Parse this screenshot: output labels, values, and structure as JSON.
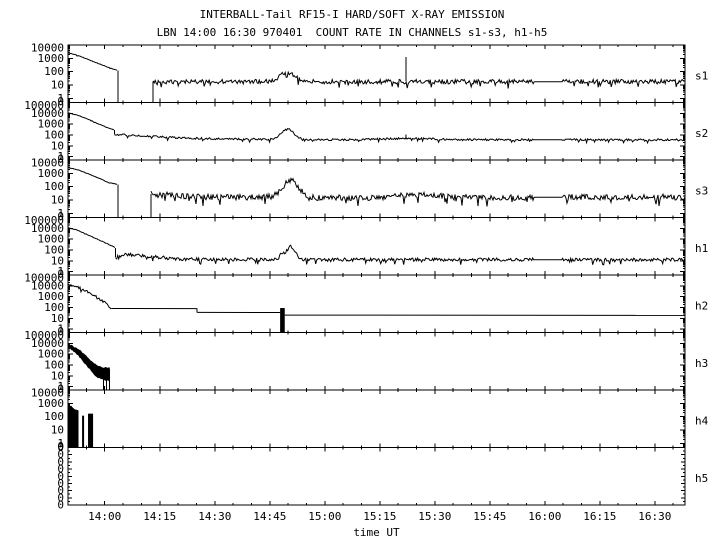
{
  "page": {
    "background": "#ffffff",
    "foreground": "#000000"
  },
  "header": {
    "title": "INTERBALL-Tail RF15-I HARD/SOFT X-RAY EMISSION",
    "subtitle": "LBN 14:00 16:30 970401  COUNT RATE IN CHANNELS s1-s3, h1-h5"
  },
  "chart_data": {
    "type": "line",
    "title": "INTERBALL-Tail RF15-I HARD/SOFT X-RAY EMISSION",
    "subtitle": "LBN 14:00 16:30 970401  COUNT RATE IN CHANNELS s1-s3, h1-h5",
    "xlabel": "time UT",
    "x_unit": "hours UT",
    "x_range": [
      13.833,
      16.637
    ],
    "grid": false,
    "legend": "channel labels on right side",
    "x_major_ticks": [
      {
        "t": 14.0,
        "label": "14:00"
      },
      {
        "t": 14.25,
        "label": "14:15"
      },
      {
        "t": 14.5,
        "label": "14:30"
      },
      {
        "t": 14.75,
        "label": "14:45"
      },
      {
        "t": 15.0,
        "label": "15:00"
      },
      {
        "t": 15.25,
        "label": "15:15"
      },
      {
        "t": 15.5,
        "label": "15:30"
      },
      {
        "t": 15.75,
        "label": "15:45"
      },
      {
        "t": 16.0,
        "label": "16:00"
      },
      {
        "t": 16.25,
        "label": "16:15"
      },
      {
        "t": 16.5,
        "label": "16:30"
      }
    ],
    "x_minor_step_hours": 0.0833333,
    "panels": [
      {
        "label": "s1",
        "scale": "log",
        "ylim": [
          0.5,
          10000
        ],
        "yticks": [
          {
            "v": 10000,
            "label": "10000"
          },
          {
            "v": 1000,
            "label": "1000"
          },
          {
            "v": 100,
            "label": "100"
          },
          {
            "v": 10,
            "label": "10"
          },
          {
            "v": 1,
            "label": "1"
          }
        ],
        "bottom_label": "0",
        "segments": [
          {
            "op": "line",
            "base": [
              [
                13.833,
                2600
              ],
              [
                13.875,
                1700
              ],
              [
                13.92,
                900
              ],
              [
                13.97,
                420
              ],
              [
                14.02,
                200
              ],
              [
                14.06,
                120
              ]
            ],
            "amp": 0.02
          },
          {
            "op": "vline",
            "t": 14.06,
            "v0": 120,
            "v1": 0.5
          },
          {
            "op": "vline",
            "t": 14.22,
            "v0": 0.5,
            "v1": 18
          },
          {
            "op": "line",
            "base": [
              [
                14.22,
                18
              ],
              [
                16.637,
                18
              ]
            ],
            "amp": 0.17,
            "bumps": [
              {
                "t": 14.83,
                "w": 0.045,
                "peak": 95
              }
            ],
            "spikes": [
              [
                15.37,
                1300
              ]
            ],
            "quiet": [
              [
                15.947,
                16.08
              ]
            ]
          }
        ]
      },
      {
        "label": "s2",
        "scale": "log",
        "ylim": [
          0.5,
          100000
        ],
        "yticks": [
          {
            "v": 100000,
            "label": "100000"
          },
          {
            "v": 10000,
            "label": "10000"
          },
          {
            "v": 1000,
            "label": "1000"
          },
          {
            "v": 100,
            "label": "100"
          },
          {
            "v": 10,
            "label": "10"
          },
          {
            "v": 1,
            "label": "1"
          }
        ],
        "bottom_label": "0",
        "segments": [
          {
            "op": "line",
            "base": [
              [
                13.833,
                11000
              ],
              [
                13.875,
                7000
              ],
              [
                13.92,
                3200
              ],
              [
                13.97,
                1100
              ],
              [
                14.02,
                420
              ],
              [
                14.045,
                300
              ]
            ],
            "amp": 0.02
          },
          {
            "op": "vline",
            "t": 14.045,
            "v0": 300,
            "v1": 110
          },
          {
            "op": "line",
            "base": [
              [
                14.045,
                110
              ],
              [
                14.15,
                95
              ],
              [
                14.3,
                60
              ],
              [
                14.5,
                45
              ],
              [
                14.9,
                38
              ],
              [
                16.637,
                36
              ]
            ],
            "amp": 0.09,
            "bumps": [
              {
                "t": 14.83,
                "w": 0.04,
                "peak": 380
              },
              {
                "t": 15.38,
                "w": 0.15,
                "peak": 48
              }
            ],
            "spikes": [
              [
                15.37,
                110
              ]
            ],
            "quiet": [
              [
                15.947,
                16.08
              ]
            ]
          }
        ]
      },
      {
        "label": "s3",
        "scale": "log",
        "ylim": [
          0.5,
          10000
        ],
        "yticks": [
          {
            "v": 10000,
            "label": "10000"
          },
          {
            "v": 1000,
            "label": "1000"
          },
          {
            "v": 100,
            "label": "100"
          },
          {
            "v": 10,
            "label": "10"
          },
          {
            "v": 1,
            "label": "1"
          }
        ],
        "bottom_label": "0",
        "segments": [
          {
            "op": "line",
            "base": [
              [
                13.833,
                2700
              ],
              [
                13.875,
                1900
              ],
              [
                13.92,
                1000
              ],
              [
                13.97,
                450
              ],
              [
                14.02,
                200
              ],
              [
                14.06,
                150
              ]
            ],
            "amp": 0.02
          },
          {
            "op": "vline",
            "t": 14.06,
            "v0": 150,
            "v1": 0.5
          },
          {
            "op": "vline",
            "t": 14.21,
            "v0": 0.5,
            "v1": 28
          },
          {
            "op": "line",
            "base": [
              [
                14.21,
                28
              ],
              [
                14.45,
                17
              ],
              [
                15.1,
                15
              ],
              [
                16.637,
                17
              ]
            ],
            "amp": 0.22,
            "bumps": [
              {
                "t": 14.845,
                "w": 0.05,
                "peak": 300
              },
              {
                "t": 15.42,
                "w": 0.12,
                "peak": 26
              }
            ],
            "quiet": [
              [
                15.947,
                16.08
              ]
            ]
          }
        ]
      },
      {
        "label": "h1",
        "scale": "log",
        "ylim": [
          0.5,
          100000
        ],
        "yticks": [
          {
            "v": 100000,
            "label": "100000"
          },
          {
            "v": 10000,
            "label": "10000"
          },
          {
            "v": 1000,
            "label": "1000"
          },
          {
            "v": 100,
            "label": "100"
          },
          {
            "v": 10,
            "label": "10"
          },
          {
            "v": 1,
            "label": "1"
          }
        ],
        "bottom_label": "0",
        "segments": [
          {
            "op": "line",
            "base": [
              [
                13.833,
                11000
              ],
              [
                13.87,
                7500
              ],
              [
                13.92,
                2800
              ],
              [
                13.97,
                900
              ],
              [
                14.02,
                320
              ],
              [
                14.05,
                160
              ]
            ],
            "amp": 0.03
          },
          {
            "op": "vline",
            "t": 14.05,
            "v0": 160,
            "v1": 20
          },
          {
            "op": "line",
            "base": [
              [
                14.05,
                20
              ],
              [
                14.1,
                40
              ],
              [
                14.16,
                30
              ],
              [
                14.35,
                14
              ],
              [
                15.0,
                13
              ],
              [
                16.637,
                13
              ]
            ],
            "amp": 0.15,
            "bumps": [
              {
                "t": 14.805,
                "w": 0.012,
                "peak": 50
              },
              {
                "t": 14.845,
                "w": 0.028,
                "peak": 200
              }
            ],
            "quiet": [
              [
                15.947,
                16.08
              ]
            ]
          }
        ]
      },
      {
        "label": "h2",
        "scale": "log",
        "ylim": [
          0.5,
          100000
        ],
        "yticks": [
          {
            "v": 100000,
            "label": "100000"
          },
          {
            "v": 10000,
            "label": "10000"
          },
          {
            "v": 1000,
            "label": "1000"
          },
          {
            "v": 100,
            "label": "100"
          },
          {
            "v": 10,
            "label": "10"
          },
          {
            "v": 1,
            "label": "1"
          }
        ],
        "bottom_label": "0",
        "segments": [
          {
            "op": "line",
            "base": [
              [
                13.833,
                16000
              ],
              [
                13.87,
                9000
              ],
              [
                13.92,
                3000
              ],
              [
                13.97,
                800
              ],
              [
                14.01,
                200
              ],
              [
                14.03,
                85
              ]
            ],
            "amp": 0.1
          },
          {
            "op": "line",
            "base": [
              [
                14.03,
                82
              ],
              [
                14.42,
                80
              ]
            ],
            "amp": 0
          },
          {
            "op": "vline",
            "t": 14.42,
            "v0": 80,
            "v1": 36
          },
          {
            "op": "line",
            "base": [
              [
                14.42,
                36
              ],
              [
                14.797,
                35
              ]
            ],
            "amp": 0
          },
          {
            "op": "bar",
            "t0": 14.797,
            "t1": 14.818,
            "v0": 0.5,
            "v1": 90
          },
          {
            "op": "line",
            "base": [
              [
                14.818,
                20
              ],
              [
                16.637,
                19
              ]
            ],
            "amp": 0
          }
        ]
      },
      {
        "label": "h3",
        "scale": "log",
        "ylim": [
          0.5,
          100000
        ],
        "yticks": [
          {
            "v": 100000,
            "label": "100000"
          },
          {
            "v": 10000,
            "label": "10000"
          },
          {
            "v": 1000,
            "label": "1000"
          },
          {
            "v": 100,
            "label": "100"
          },
          {
            "v": 10,
            "label": "10"
          },
          {
            "v": 1,
            "label": "1"
          }
        ],
        "bottom_label": "0",
        "segments": [
          {
            "op": "band",
            "amp": 0.06,
            "top": [
              [
                13.833,
                8000
              ],
              [
                13.86,
                4500
              ],
              [
                13.89,
                1800
              ],
              [
                13.915,
                600
              ],
              [
                13.94,
                200
              ],
              [
                13.965,
                80
              ],
              [
                13.99,
                55
              ],
              [
                14.02,
                50
              ]
            ],
            "bottom": [
              [
                13.833,
                4500
              ],
              [
                13.86,
                2000
              ],
              [
                13.89,
                500
              ],
              [
                13.915,
                120
              ],
              [
                13.94,
                30
              ],
              [
                13.965,
                8
              ],
              [
                13.99,
                5
              ],
              [
                14.02,
                4
              ]
            ]
          },
          {
            "op": "vline",
            "t": 13.995,
            "v0": 50,
            "v1": 0.5
          },
          {
            "op": "vline",
            "t": 14.008,
            "v0": 50,
            "v1": 0.5
          },
          {
            "op": "vline",
            "t": 14.022,
            "v0": 50,
            "v1": 0.5
          }
        ]
      },
      {
        "label": "h4",
        "scale": "log",
        "ylim": [
          0.5,
          10000
        ],
        "yticks": [
          {
            "v": 10000,
            "label": "10000"
          },
          {
            "v": 1000,
            "label": "1000"
          },
          {
            "v": 100,
            "label": "100"
          },
          {
            "v": 10,
            "label": "10"
          },
          {
            "v": 1,
            "label": "1"
          }
        ],
        "bottom_label": "0",
        "segments": [
          {
            "op": "band",
            "amp": 0.05,
            "top": [
              [
                13.833,
                800
              ],
              [
                13.85,
                500
              ],
              [
                13.865,
                330
              ],
              [
                13.879,
                250
              ]
            ],
            "bottom": [
              [
                13.833,
                0.5
              ],
              [
                13.879,
                0.5
              ]
            ]
          },
          {
            "op": "bar",
            "t0": 13.897,
            "t1": 13.906,
            "v0": 0.5,
            "v1": 120
          },
          {
            "op": "bar",
            "t0": 13.924,
            "t1": 13.947,
            "v0": 0.5,
            "v1": 170
          }
        ]
      },
      {
        "label": "h5",
        "scale": "flat-zero",
        "ylim": [
          0,
          0
        ],
        "yticks": [
          {
            "label": "0"
          },
          {
            "label": "0"
          },
          {
            "label": "0"
          },
          {
            "label": "0"
          },
          {
            "label": "0"
          },
          {
            "label": "0"
          },
          {
            "label": "0"
          },
          {
            "label": "0"
          },
          {
            "label": "0"
          }
        ],
        "segments": []
      }
    ]
  }
}
